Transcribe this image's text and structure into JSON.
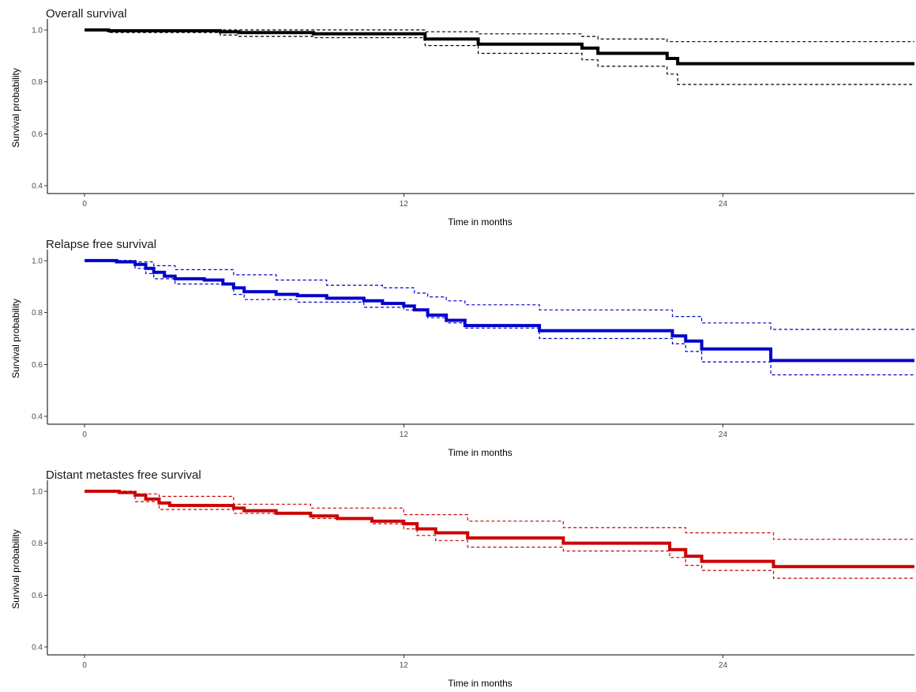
{
  "chart_data": [
    {
      "type": "line",
      "title": "Overall survival",
      "xlabel": "Time in months",
      "ylabel": "Survival probability",
      "xlim": [
        -1.4,
        31.2
      ],
      "ylim": [
        0.37,
        1.03
      ],
      "xticks": [
        0,
        12,
        24
      ],
      "yticks": [
        0.4,
        0.6,
        0.8,
        1.0
      ],
      "ytick_labels": [
        "0.4",
        "0.6",
        "0.8",
        "1.0"
      ],
      "grid": false,
      "color": "#000000",
      "series": [
        {
          "role": "estimate",
          "style": "solid",
          "x": [
            0,
            0.9,
            5.1,
            5.8,
            8.6,
            12.8,
            14.8,
            18.7,
            19.3,
            21.9,
            22.3
          ],
          "y": [
            1.0,
            0.997,
            0.993,
            0.99,
            0.985,
            0.965,
            0.945,
            0.93,
            0.91,
            0.89,
            0.87
          ]
        },
        {
          "role": "upper",
          "style": "dashed",
          "x": [
            0,
            12.8,
            14.8,
            18.7,
            19.3,
            21.9,
            22.3
          ],
          "y": [
            1.0,
            0.993,
            0.985,
            0.975,
            0.965,
            0.955,
            0.955
          ]
        },
        {
          "role": "lower",
          "style": "dashed",
          "x": [
            0,
            0.9,
            5.1,
            5.8,
            8.6,
            12.8,
            14.8,
            18.7,
            19.3,
            21.9,
            22.3
          ],
          "y": [
            1.0,
            0.99,
            0.98,
            0.975,
            0.97,
            0.94,
            0.91,
            0.885,
            0.86,
            0.83,
            0.79
          ]
        }
      ]
    },
    {
      "type": "line",
      "title": "Relapse free survival",
      "xlabel": "Time in months",
      "ylabel": "Survival probability",
      "xlim": [
        -1.4,
        31.2
      ],
      "ylim": [
        0.37,
        1.03
      ],
      "xticks": [
        0,
        12,
        24
      ],
      "yticks": [
        0.4,
        0.6,
        0.8,
        1.0
      ],
      "ytick_labels": [
        "0.4",
        "0.6",
        "0.8",
        "1.0"
      ],
      "grid": false,
      "color": "#0000cc",
      "series": [
        {
          "role": "estimate",
          "style": "solid",
          "x": [
            0,
            1.2,
            1.9,
            2.3,
            2.6,
            3.0,
            3.4,
            4.5,
            5.2,
            5.6,
            6.0,
            7.2,
            8.0,
            9.1,
            10.5,
            11.2,
            12.0,
            12.4,
            12.9,
            13.6,
            14.3,
            17.1,
            22.1,
            22.6,
            23.2,
            25.8
          ],
          "y": [
            1.0,
            0.995,
            0.985,
            0.97,
            0.955,
            0.94,
            0.93,
            0.925,
            0.91,
            0.895,
            0.88,
            0.87,
            0.865,
            0.855,
            0.845,
            0.835,
            0.825,
            0.81,
            0.79,
            0.77,
            0.75,
            0.73,
            0.71,
            0.69,
            0.66,
            0.615
          ]
        },
        {
          "role": "upper",
          "style": "dashed",
          "x": [
            0,
            1.9,
            2.6,
            3.4,
            5.6,
            7.2,
            9.1,
            11.2,
            12.4,
            12.9,
            13.6,
            14.3,
            17.1,
            22.1,
            23.2,
            25.8
          ],
          "y": [
            1.0,
            0.995,
            0.98,
            0.965,
            0.945,
            0.925,
            0.905,
            0.895,
            0.875,
            0.86,
            0.845,
            0.83,
            0.81,
            0.785,
            0.76,
            0.735
          ]
        },
        {
          "role": "lower",
          "style": "dashed",
          "x": [
            0,
            1.9,
            2.3,
            2.6,
            3.4,
            5.6,
            6.0,
            8.0,
            10.5,
            12.0,
            12.9,
            13.6,
            14.3,
            17.1,
            22.1,
            22.6,
            23.2,
            25.8
          ],
          "y": [
            1.0,
            0.97,
            0.95,
            0.93,
            0.91,
            0.87,
            0.85,
            0.84,
            0.82,
            0.81,
            0.78,
            0.76,
            0.74,
            0.7,
            0.68,
            0.65,
            0.61,
            0.56
          ]
        }
      ]
    },
    {
      "type": "line",
      "title": "Distant metastes free survival",
      "xlabel": "Time in months",
      "ylabel": "Survival probability",
      "xlim": [
        -1.4,
        31.2
      ],
      "ylim": [
        0.37,
        1.03
      ],
      "xticks": [
        0,
        12,
        24
      ],
      "yticks": [
        0.4,
        0.6,
        0.8,
        1.0
      ],
      "ytick_labels": [
        "0.4",
        "0.6",
        "0.8",
        "1.0"
      ],
      "grid": false,
      "color": "#cc0000",
      "series": [
        {
          "role": "estimate",
          "style": "solid",
          "x": [
            0,
            1.3,
            1.9,
            2.3,
            2.8,
            3.2,
            5.6,
            6.0,
            7.2,
            8.5,
            9.5,
            10.8,
            12.0,
            12.5,
            13.2,
            14.4,
            18.0,
            22.0,
            22.6,
            23.2,
            25.9
          ],
          "y": [
            1.0,
            0.995,
            0.985,
            0.97,
            0.955,
            0.945,
            0.935,
            0.925,
            0.915,
            0.905,
            0.895,
            0.885,
            0.875,
            0.855,
            0.84,
            0.82,
            0.8,
            0.775,
            0.75,
            0.73,
            0.71
          ]
        },
        {
          "role": "upper",
          "style": "dashed",
          "x": [
            0,
            1.9,
            2.8,
            5.6,
            8.5,
            12.0,
            14.4,
            18.0,
            22.6,
            25.9
          ],
          "y": [
            1.0,
            0.99,
            0.98,
            0.95,
            0.935,
            0.91,
            0.885,
            0.86,
            0.84,
            0.815
          ]
        },
        {
          "role": "lower",
          "style": "dashed",
          "x": [
            0,
            1.9,
            2.8,
            5.6,
            8.5,
            10.8,
            12.0,
            12.5,
            13.2,
            14.4,
            18.0,
            22.0,
            22.6,
            23.2,
            25.9
          ],
          "y": [
            1.0,
            0.96,
            0.93,
            0.915,
            0.895,
            0.875,
            0.855,
            0.83,
            0.81,
            0.785,
            0.77,
            0.745,
            0.715,
            0.695,
            0.665
          ]
        }
      ]
    }
  ]
}
